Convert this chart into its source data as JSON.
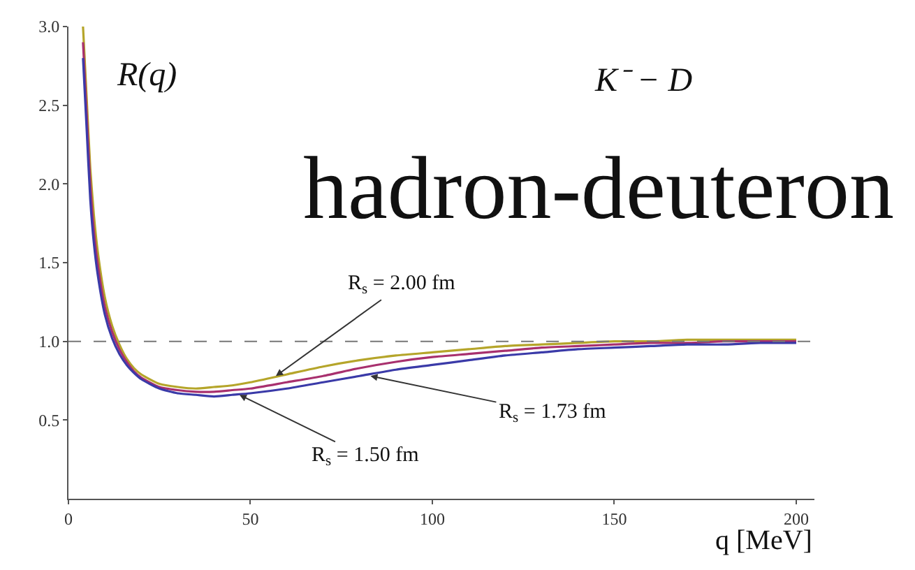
{
  "chart_data": {
    "type": "line",
    "title": "K⁻ − D",
    "subtitle": "hadron-deuteron",
    "xlabel": "q [MeV]",
    "ylabel": "R(q)",
    "x": [
      4,
      5,
      6,
      7,
      8,
      10,
      12,
      14,
      16,
      18,
      20,
      25,
      30,
      35,
      40,
      45,
      50,
      60,
      70,
      80,
      90,
      100,
      110,
      120,
      130,
      140,
      150,
      160,
      170,
      180,
      190,
      200
    ],
    "series": [
      {
        "color": "#b5a52a",
        "values": [
          3.0,
          2.55,
          2.1,
          1.8,
          1.58,
          1.28,
          1.1,
          0.98,
          0.89,
          0.83,
          0.79,
          0.73,
          0.71,
          0.7,
          0.71,
          0.72,
          0.74,
          0.79,
          0.84,
          0.88,
          0.91,
          0.93,
          0.95,
          0.97,
          0.98,
          0.99,
          1.0,
          1.0,
          1.01,
          1.01,
          1.01,
          1.01
        ]
      },
      {
        "color": "#a8306e",
        "values": [
          2.9,
          2.45,
          2.0,
          1.7,
          1.5,
          1.22,
          1.06,
          0.95,
          0.87,
          0.81,
          0.77,
          0.71,
          0.69,
          0.68,
          0.68,
          0.69,
          0.7,
          0.74,
          0.78,
          0.83,
          0.87,
          0.9,
          0.92,
          0.94,
          0.96,
          0.97,
          0.98,
          0.99,
          0.99,
          1.0,
          1.0,
          1.0
        ]
      },
      {
        "color": "#3a3aa8",
        "values": [
          2.8,
          2.35,
          1.9,
          1.62,
          1.43,
          1.17,
          1.02,
          0.92,
          0.85,
          0.8,
          0.76,
          0.7,
          0.67,
          0.66,
          0.65,
          0.66,
          0.67,
          0.7,
          0.74,
          0.78,
          0.82,
          0.85,
          0.88,
          0.91,
          0.93,
          0.95,
          0.96,
          0.97,
          0.98,
          0.98,
          0.99,
          0.99
        ]
      }
    ],
    "annotations": [
      {
        "text": "R$_{s}$ = 2.00 fm",
        "x": 57,
        "y": 0.78
      },
      {
        "text": "R$_{s}$ = 1.73 fm",
        "x": 83,
        "y": 0.78
      },
      {
        "text": "R$_{s}$ = 1.50 fm",
        "x": 47,
        "y": 0.66
      }
    ],
    "ref_lines": [
      {
        "axis": "y",
        "value": 1,
        "color": "#777777",
        "line_style": "dashed"
      }
    ],
    "xlim": [
      0,
      205
    ],
    "ylim": [
      0,
      3.0
    ],
    "xticks": [
      0,
      50,
      100,
      150,
      200
    ],
    "yticks": [
      0.5,
      {
        "value": 1,
        "label": "1.0"
      },
      1.5,
      {
        "value": 2,
        "label": "2.0"
      },
      2.5,
      {
        "value": 3,
        "label": "3.0"
      }
    ],
    "line_style": "solid"
  }
}
